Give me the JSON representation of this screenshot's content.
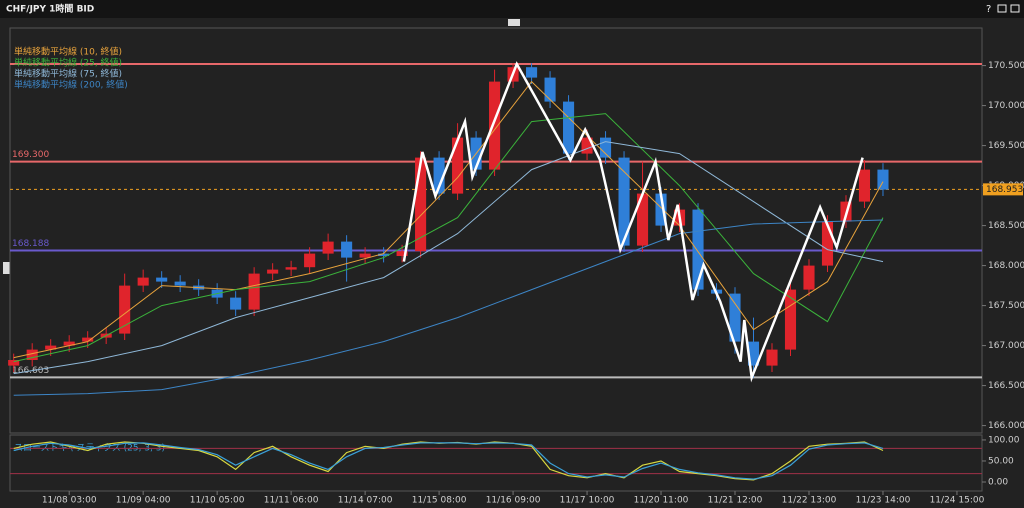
{
  "header": {
    "title": "CHF/JPY 1時間 BID",
    "help": "?"
  },
  "chart_data": [
    {
      "type": "candlestick",
      "up_color": "#e0242c",
      "down_color": "#2f7fd8",
      "open": [
        166.75,
        166.82,
        166.95,
        167.0,
        167.05,
        167.1,
        167.15,
        167.75,
        167.85,
        167.8,
        167.75,
        167.7,
        167.6,
        167.45,
        167.9,
        167.95,
        167.98,
        168.15,
        168.3,
        168.1,
        168.15,
        168.12,
        168.18,
        169.35,
        168.9,
        169.6,
        169.2,
        170.3,
        170.48,
        170.35,
        170.05,
        169.4,
        169.6,
        169.35,
        168.25,
        168.9,
        168.5,
        168.7,
        167.7,
        167.65,
        167.05,
        166.75,
        166.95,
        167.7,
        168.0,
        168.55,
        168.8,
        169.2
      ],
      "high": [
        166.9,
        167.03,
        167.08,
        167.13,
        167.18,
        167.23,
        167.9,
        167.95,
        167.93,
        167.88,
        167.83,
        167.78,
        167.68,
        167.98,
        168.03,
        168.06,
        168.23,
        168.4,
        168.38,
        168.23,
        168.23,
        168.26,
        169.43,
        169.43,
        169.78,
        169.68,
        170.45,
        170.53,
        170.53,
        170.43,
        170.13,
        169.7,
        169.68,
        169.43,
        169.3,
        168.98,
        168.78,
        168.78,
        167.78,
        167.73,
        167.35,
        167.03,
        167.78,
        168.08,
        168.63,
        168.88,
        169.32,
        169.28
      ],
      "low": [
        166.67,
        166.74,
        166.87,
        166.92,
        166.97,
        167.02,
        167.07,
        167.67,
        167.72,
        167.67,
        167.62,
        167.52,
        167.37,
        167.37,
        167.82,
        167.87,
        167.9,
        168.07,
        167.8,
        168.02,
        168.04,
        168.04,
        168.1,
        168.82,
        168.82,
        169.12,
        169.12,
        170.22,
        170.27,
        169.97,
        169.32,
        169.32,
        169.27,
        168.17,
        168.17,
        168.42,
        168.42,
        167.62,
        167.57,
        166.9,
        166.6,
        166.67,
        166.87,
        167.62,
        167.92,
        168.47,
        168.72,
        168.87
      ],
      "close": [
        166.82,
        166.95,
        167.0,
        167.05,
        167.1,
        167.15,
        167.75,
        167.85,
        167.8,
        167.75,
        167.7,
        167.6,
        167.45,
        167.9,
        167.95,
        167.98,
        168.15,
        168.3,
        168.1,
        168.15,
        168.12,
        168.18,
        169.35,
        168.9,
        169.6,
        169.2,
        170.3,
        170.48,
        170.35,
        170.05,
        169.4,
        169.6,
        169.35,
        168.25,
        168.9,
        168.5,
        168.7,
        167.7,
        167.65,
        167.05,
        166.75,
        166.95,
        167.7,
        168.0,
        168.55,
        168.8,
        169.2,
        168.95
      ],
      "overlays": [
        {
          "name": "単純移動平均線 (10, 終値)",
          "color": "#e8a33c",
          "x": [
            0,
            4,
            8,
            12,
            16,
            20,
            24,
            28,
            32,
            36,
            40,
            44,
            47
          ],
          "values": [
            166.85,
            167.05,
            167.75,
            167.7,
            167.9,
            168.15,
            169.1,
            170.3,
            169.4,
            168.5,
            167.2,
            167.8,
            169.05
          ]
        },
        {
          "name": "単純移動平均線 (25, 終値)",
          "color": "#3bb33b",
          "x": [
            0,
            4,
            8,
            12,
            16,
            20,
            24,
            28,
            32,
            36,
            40,
            44,
            47
          ],
          "values": [
            166.8,
            167.0,
            167.5,
            167.7,
            167.8,
            168.1,
            168.6,
            169.8,
            169.9,
            169.0,
            167.9,
            167.3,
            168.6
          ]
        },
        {
          "name": "単純移動平均線 (75, 終値)",
          "color": "#8fb8d8",
          "x": [
            0,
            4,
            8,
            12,
            16,
            20,
            24,
            28,
            32,
            36,
            40,
            44,
            47
          ],
          "values": [
            166.65,
            166.8,
            167.0,
            167.35,
            167.6,
            167.85,
            168.4,
            169.2,
            169.55,
            169.4,
            168.8,
            168.2,
            168.05
          ]
        },
        {
          "name": "単純移動平均線 (200, 終値)",
          "color": "#3d85c6",
          "x": [
            0,
            4,
            8,
            12,
            16,
            20,
            24,
            28,
            32,
            36,
            40,
            44,
            47
          ],
          "values": [
            166.38,
            166.4,
            166.45,
            166.62,
            166.82,
            167.05,
            167.35,
            167.7,
            168.05,
            168.4,
            168.52,
            168.55,
            168.57
          ]
        },
        {
          "color": "#ffffff",
          "x": [
            21.1,
            22.1,
            22.8,
            24.4,
            24.8,
            27.2,
            30.1,
            30.9,
            31.7,
            32.8,
            34.7,
            35.4,
            35.9,
            36.7,
            37.3,
            38.2,
            39.3,
            39.5,
            39.9,
            43.6,
            44.5,
            45.9
          ],
          "values": [
            168.05,
            169.42,
            168.87,
            169.8,
            169.11,
            170.52,
            169.32,
            169.7,
            169.32,
            168.2,
            169.3,
            168.32,
            168.76,
            167.57,
            168.01,
            167.55,
            166.8,
            167.32,
            166.6,
            168.73,
            168.23,
            169.35
          ]
        }
      ],
      "levels": [
        {
          "value": 170.52,
          "color": "#e8686a"
        },
        {
          "value": 169.3,
          "label": "169.300",
          "color": "#e8686a"
        },
        {
          "value": 168.188,
          "label": "168.188",
          "color": "#6a5acd"
        },
        {
          "value": 166.603,
          "label": "166.603",
          "color": "#bbbbbb"
        }
      ],
      "current": {
        "value": 168.953,
        "label": "168.953",
        "color": "#f0a020"
      },
      "xlim": [
        -0.2,
        52.3
      ],
      "ylim": [
        165.92,
        170.92
      ],
      "xticks": [
        {
          "value": 3,
          "label": "11/08 03:00"
        },
        {
          "value": 7,
          "label": "11/09 04:00"
        },
        {
          "value": 11,
          "label": "11/10 05:00"
        },
        {
          "value": 15,
          "label": "11/11 06:00"
        },
        {
          "value": 19,
          "label": "11/14 07:00"
        },
        {
          "value": 23,
          "label": "11/15 08:00"
        },
        {
          "value": 27,
          "label": "11/16 09:00"
        },
        {
          "value": 31,
          "label": "11/17 10:00"
        },
        {
          "value": 35,
          "label": "11/20 11:00"
        },
        {
          "value": 39,
          "label": "11/21 12:00"
        },
        {
          "value": 43,
          "label": "11/22 13:00"
        },
        {
          "value": 47,
          "label": "11/23 14:00"
        },
        {
          "value": 51,
          "label": "11/24 15:00"
        }
      ],
      "yticks": [
        {
          "value": 166,
          "label": "166.000"
        },
        {
          "value": 166.5,
          "label": "166.500"
        },
        {
          "value": 167,
          "label": "167.000"
        },
        {
          "value": 167.5,
          "label": "167.500"
        },
        {
          "value": 168,
          "label": "168.000"
        },
        {
          "value": 168.5,
          "label": "168.500"
        },
        {
          "value": 169,
          "label": "169.000"
        },
        {
          "value": 169.5,
          "label": "169.500"
        },
        {
          "value": 170,
          "label": "170.000"
        },
        {
          "value": 170.5,
          "label": "170.500"
        }
      ]
    },
    {
      "type": "line",
      "title": "スローストキャスティクス (25, 3, 3)",
      "series": [
        {
          "color": "#d8d840",
          "values": [
            80,
            90,
            95,
            85,
            75,
            90,
            95,
            92,
            85,
            80,
            75,
            60,
            30,
            70,
            85,
            60,
            40,
            25,
            70,
            85,
            80,
            90,
            95,
            92,
            94,
            90,
            95,
            92,
            85,
            30,
            15,
            10,
            20,
            10,
            40,
            50,
            25,
            20,
            15,
            8,
            5,
            20,
            50,
            85,
            90,
            92,
            95,
            75
          ]
        },
        {
          "color": "#3aa0d8",
          "values": [
            75,
            85,
            92,
            88,
            80,
            85,
            92,
            93,
            88,
            82,
            77,
            65,
            40,
            60,
            80,
            65,
            45,
            30,
            60,
            80,
            82,
            88,
            93,
            93,
            93,
            91,
            93,
            92,
            88,
            45,
            20,
            12,
            17,
            12,
            32,
            45,
            30,
            22,
            17,
            10,
            7,
            15,
            40,
            78,
            88,
            91,
            93,
            80
          ]
        }
      ],
      "levels": [
        {
          "value": 80,
          "color": "#a03048"
        },
        {
          "value": 20,
          "color": "#a03048"
        }
      ],
      "xlim": [
        -0.2,
        52.3
      ],
      "ylim": [
        -19,
        107
      ],
      "yticks": [
        {
          "value": 0,
          "label": "0.00"
        },
        {
          "value": 50,
          "label": "50.00"
        },
        {
          "value": 100,
          "label": "100.00"
        }
      ]
    }
  ]
}
